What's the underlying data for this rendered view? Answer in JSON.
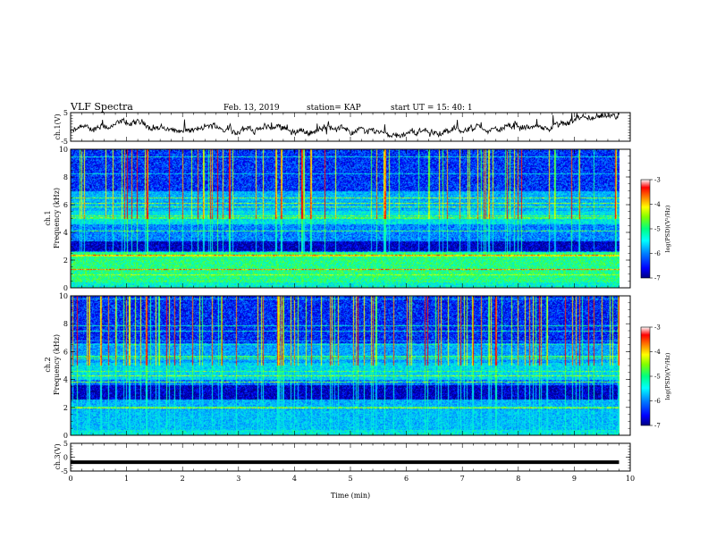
{
  "header": {
    "title": "VLF Spectra",
    "date": "Feb. 13, 2019",
    "station": "station= KAP",
    "start": "start  UT =   15: 40: 1"
  },
  "chart_data": [
    {
      "type": "line",
      "name": "ch1-waveform",
      "ylabel": "ch.1(V)",
      "ylim": [
        -5,
        5
      ],
      "yticks": [
        -5,
        5
      ],
      "xlim": [
        0,
        10
      ],
      "trace_end": 9.8
    },
    {
      "type": "heatmap",
      "name": "ch1-spectrogram",
      "ylabel": "ch.1",
      "ylabel2": "Frequency (kHz)",
      "xlim": [
        0,
        10
      ],
      "ylim": [
        0,
        10
      ],
      "yticks": [
        0,
        2,
        4,
        6,
        8,
        10
      ],
      "trace_end": 9.8,
      "colorbar": {
        "label": "log(PSD)(V²/Hz)",
        "range": [
          -7,
          -3
        ],
        "ticks": [
          -3,
          -4,
          -5,
          -6,
          -7
        ]
      }
    },
    {
      "type": "heatmap",
      "name": "ch2-spectrogram",
      "ylabel": "ch.2",
      "ylabel2": "Frequency (kHz)",
      "xlim": [
        0,
        10
      ],
      "ylim": [
        0,
        10
      ],
      "yticks": [
        0,
        2,
        4,
        6,
        8,
        10
      ],
      "trace_end": 9.8,
      "colorbar": {
        "label": "log(PSD)(V²/Hz)",
        "range": [
          -7,
          -3
        ],
        "ticks": [
          -3,
          -4,
          -5,
          -6,
          -7
        ]
      }
    },
    {
      "type": "line",
      "name": "ch3-waveform",
      "ylabel": "ch.3(V)",
      "ylim": [
        -5,
        5
      ],
      "yticks": [
        -5,
        0,
        5
      ],
      "y_value": -1.8,
      "xlim": [
        0,
        10
      ],
      "trace_end": 9.8,
      "xlabel": "Time (min)",
      "xticks": [
        0,
        1,
        2,
        3,
        4,
        5,
        6,
        7,
        8,
        9,
        10
      ]
    }
  ],
  "colors": {
    "ink": "#000000",
    "colormap": [
      "#000080",
      "#0000ff",
      "#0080ff",
      "#00c0ff",
      "#00ffc0",
      "#40ff40",
      "#c0ff00",
      "#ffff00",
      "#ff8000",
      "#ff0000",
      "#ffffff"
    ]
  }
}
